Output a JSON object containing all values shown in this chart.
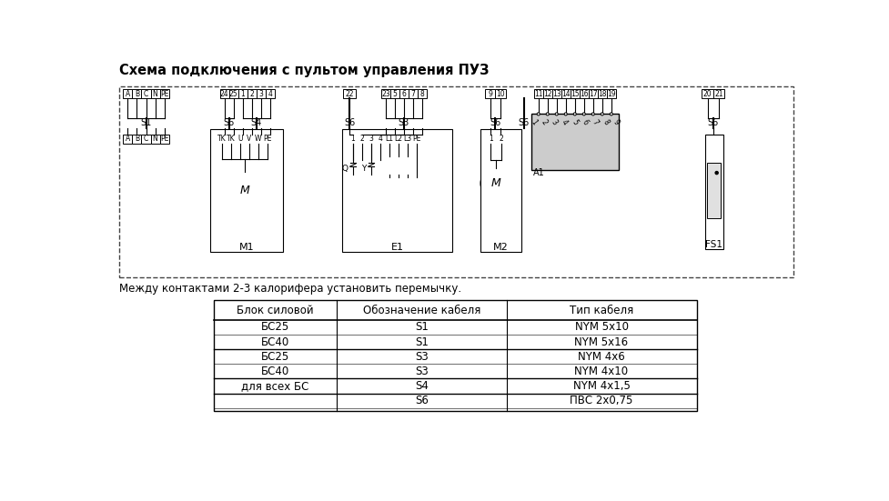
{
  "title": "Схема подключения с пультом управления ПУЗ",
  "note": "Между контактами 2-3 калорифера установить перемычку.",
  "bg_color": "#ffffff",
  "table_headers": [
    "Блок силовой",
    "Обозначение кабеля",
    "Тип кабеля"
  ],
  "table_rows": [
    [
      "БС25",
      "S1",
      "NYM 5x10"
    ],
    [
      "БС40",
      "S1",
      "NYM 5x16"
    ],
    [
      "БС25",
      "S3",
      "NYM 4x6"
    ],
    [
      "БС40",
      "S3",
      "NYM 4x10"
    ],
    [
      "для всех БС",
      "S4",
      "NYM 4x1,5"
    ],
    [
      "",
      "S6",
      "ПВС 2x0,75"
    ]
  ],
  "group_seps": [
    2,
    4,
    5
  ]
}
